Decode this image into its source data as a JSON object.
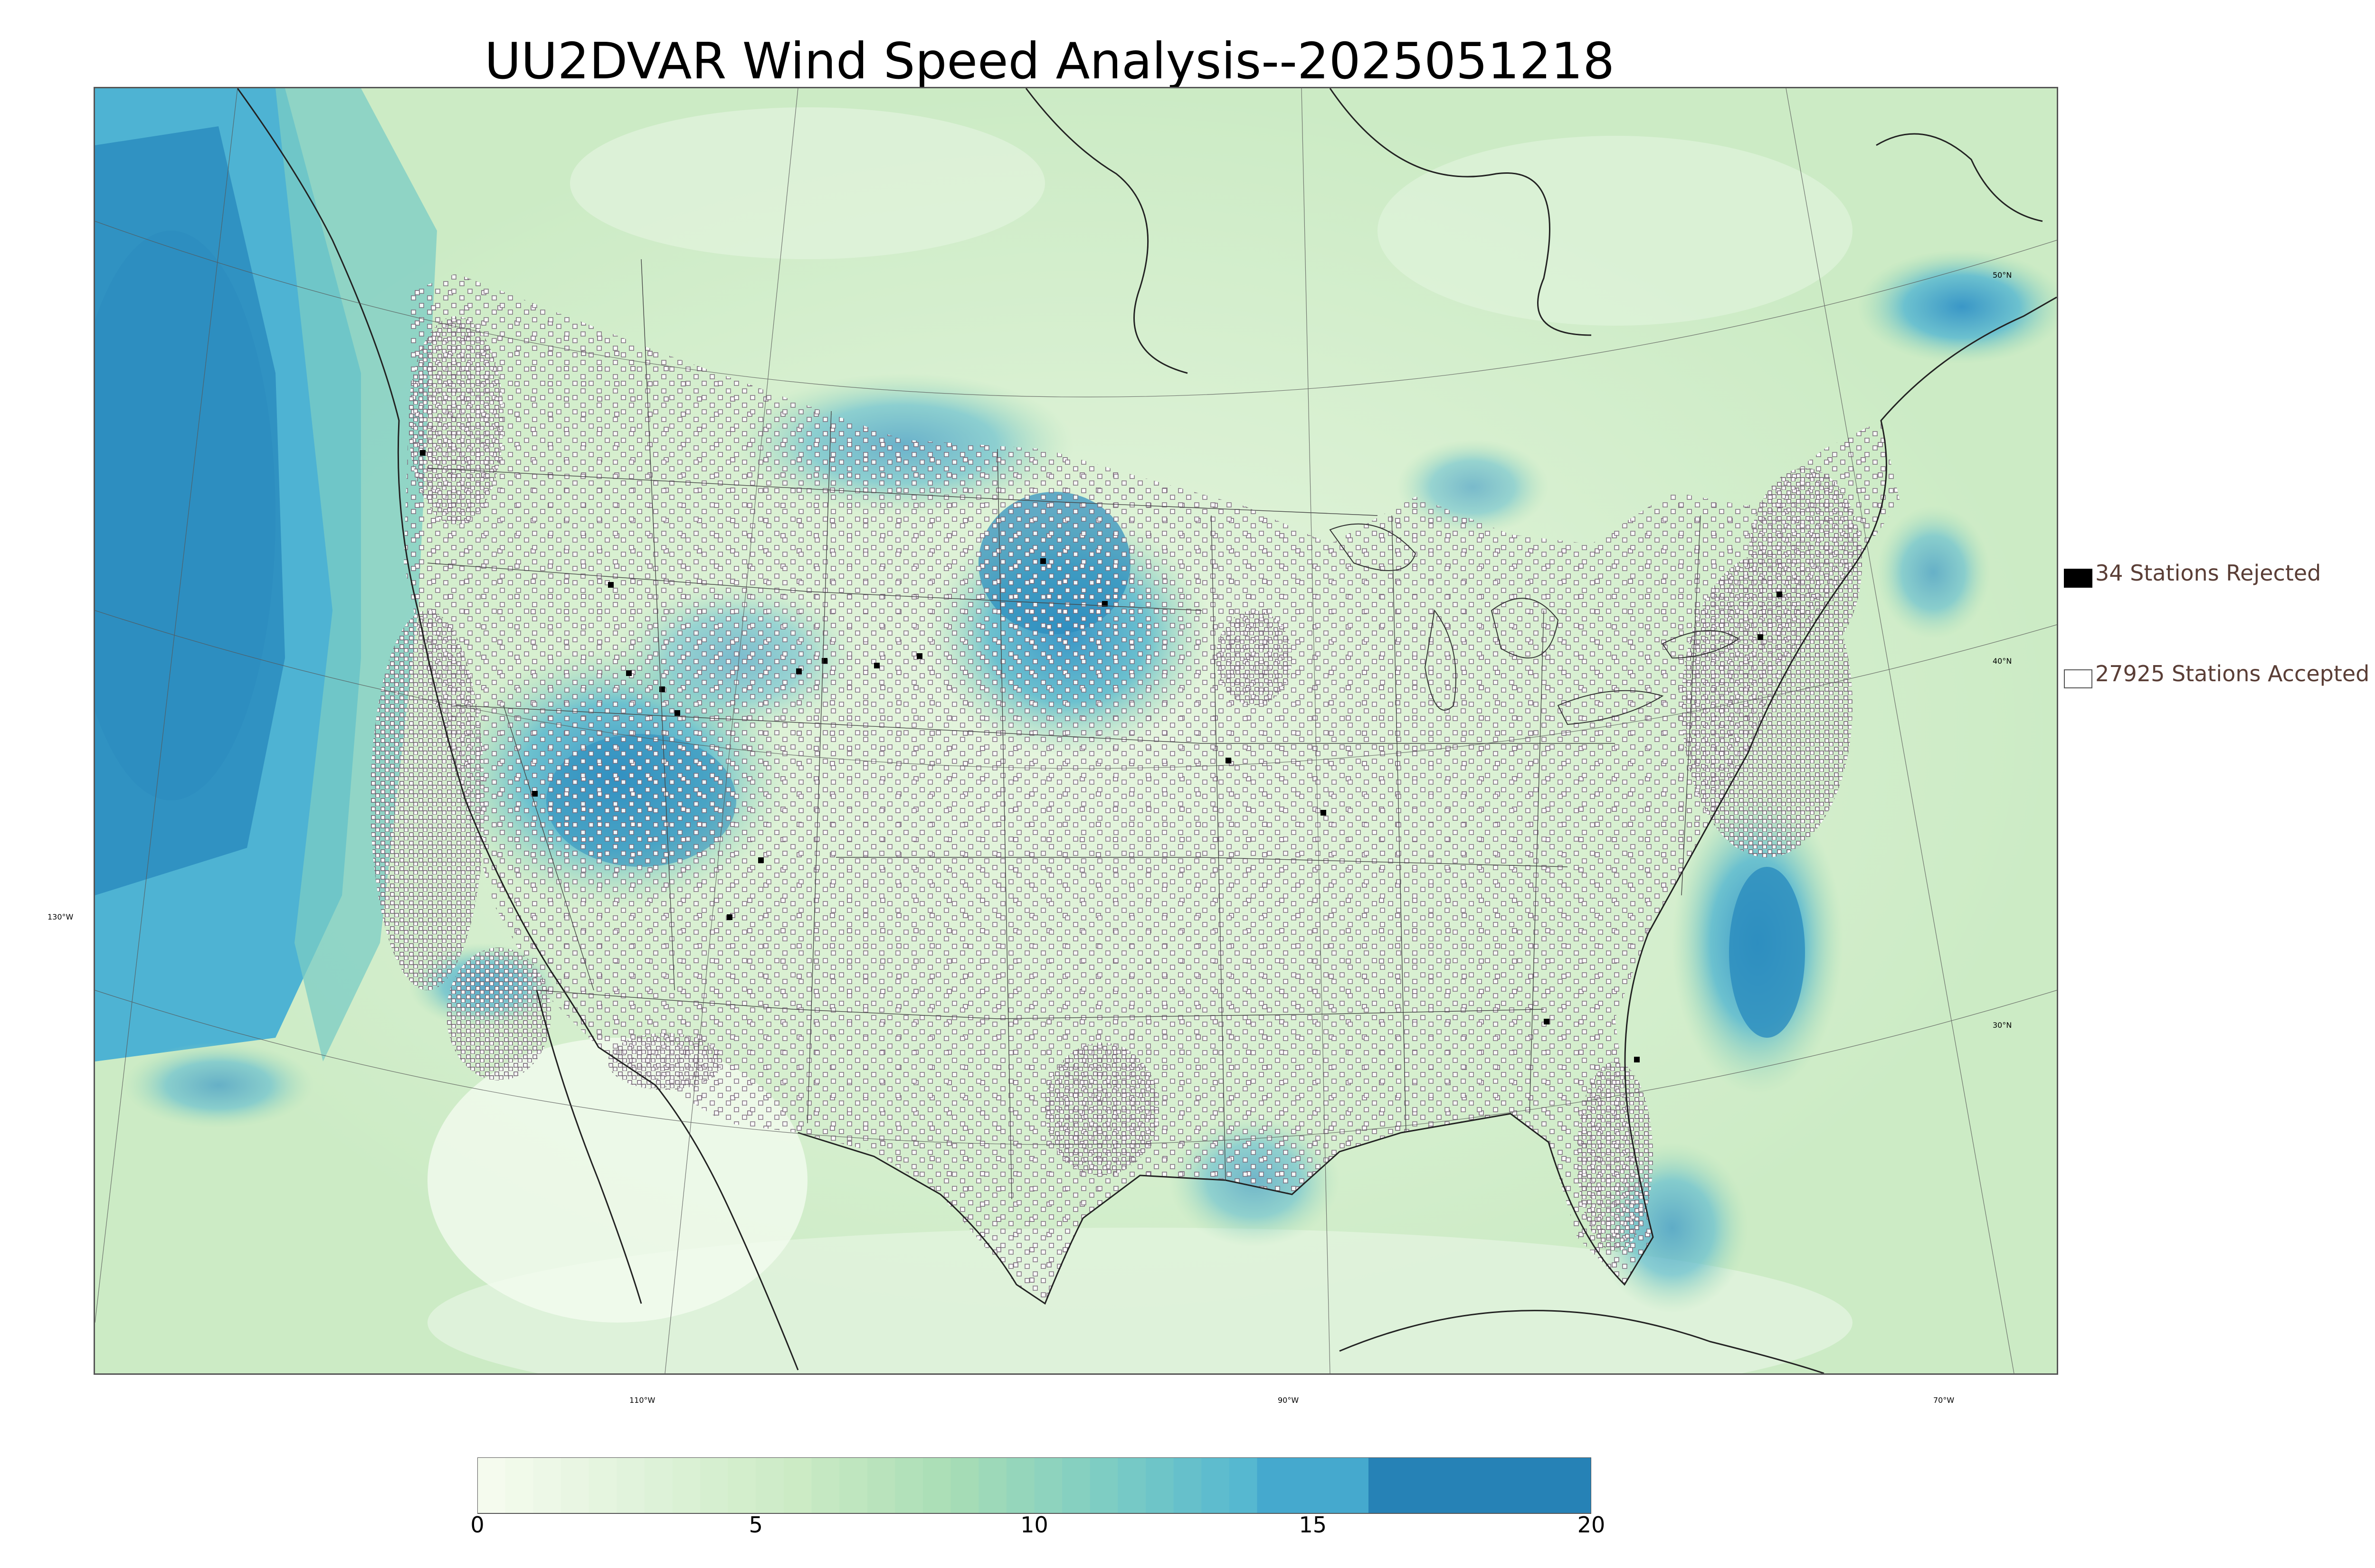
{
  "title": "UU2DVAR Wind Speed Analysis--2025051218",
  "legend": {
    "rejected": {
      "label": "34 Stations Rejected",
      "color": "#000000"
    },
    "accepted": {
      "label": "27925 Stations Accepted",
      "color": "#ffffff"
    }
  },
  "map": {
    "lon_labels": [
      "130°W",
      "110°W",
      "90°W",
      "70°W"
    ],
    "lat_labels": [
      "50°N",
      "40°N",
      "30°N"
    ],
    "colors": {
      "water_calm": "#e8f6e4",
      "land_calm": "#f2fbef",
      "moderate": "#a8ddb5",
      "strong": "#43a2ca",
      "very_strong": "#1f6ea6",
      "station_outline": "#7a6a7a",
      "boundary": "#333333"
    }
  },
  "colorbar": {
    "min": 0,
    "max": 20,
    "ticks": [
      "0",
      "5",
      "10",
      "15",
      "20"
    ],
    "stops": [
      "#f7fcf0",
      "#e0f3db",
      "#ccebc5",
      "#a8ddb5",
      "#7bccc4",
      "#4eb3d3",
      "#2b8cbe",
      "#1a6aa2"
    ]
  }
}
